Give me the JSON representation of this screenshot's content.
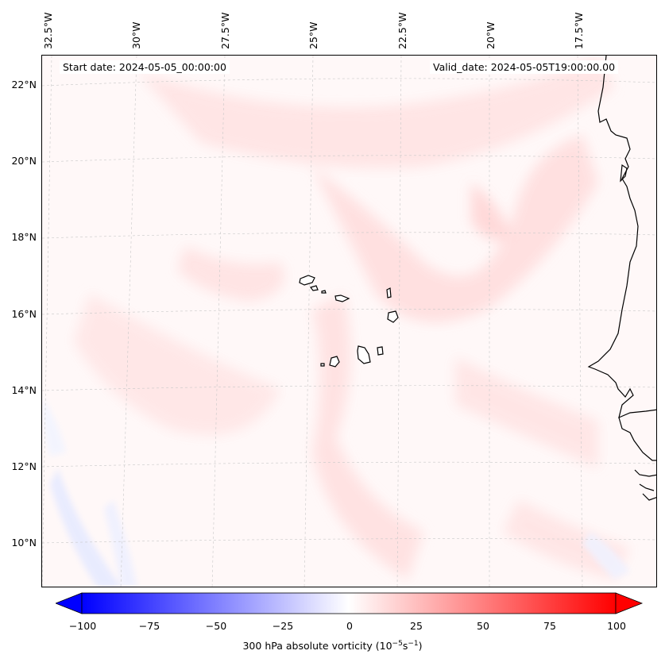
{
  "header": {
    "start_date": "Start date: 2024-05-05_00:00:00",
    "valid_date": "Valid_date: 2024-05-05T19:00:00.00"
  },
  "lon_labels": [
    "32.5°W",
    "30°W",
    "27.5°W",
    "25°W",
    "22.5°W",
    "20°W",
    "17.5°W"
  ],
  "lat_labels": [
    "22°N",
    "20°N",
    "18°N",
    "16°N",
    "14°N",
    "12°N",
    "10°N"
  ],
  "colorbar": {
    "ticks": [
      "−100",
      "−75",
      "−50",
      "−25",
      "0",
      "25",
      "50",
      "75",
      "100"
    ],
    "label_main": "300 hPa absolute vorticity (10",
    "label_sup1": "−5",
    "label_mid": "s",
    "label_sup2": "−1",
    "label_end": ")",
    "min_color": "#0000ff",
    "mid_color": "#ffffff",
    "max_color": "#ff0000"
  },
  "map_colors": {
    "land_outline": "#000000",
    "gridline": "#bbbbbb",
    "ocean_field_light_red": "#ffe6e6",
    "ocean_field_pale": "#fff5f5",
    "weak_blue": "#eef0ff"
  }
}
